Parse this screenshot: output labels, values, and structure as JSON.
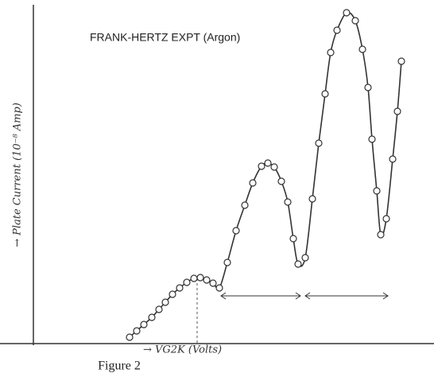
{
  "chart_data": {
    "type": "line",
    "title": "FRANK-HERTZ EXPT (Argon)",
    "xlabel": "→ VG2K (Volts)",
    "ylabel": "→ Plate Current (10⁻⁸ Amp)",
    "caption": "Figure 2",
    "xlim": [
      0,
      252
    ],
    "ylim": [
      0,
      211
    ],
    "color": "#333333",
    "x": [
      60.5,
      65,
      69.5,
      74.5,
      79,
      83,
      87.5,
      92,
      96.5,
      101,
      105,
      109,
      113,
      117,
      122,
      127.5,
      133,
      138,
      143.5,
      147.5,
      151.5,
      156,
      160,
      163.5,
      166.5,
      171,
      175.5,
      179.5,
      183.5,
      187,
      191,
      197,
      202.5,
      207,
      210.5,
      213,
      216,
      218.5,
      222,
      226,
      229,
      231.5
    ],
    "values": [
      4,
      8,
      12,
      16.5,
      21.5,
      26,
      31,
      35,
      38.5,
      41,
      41.5,
      40,
      38,
      35,
      51,
      71,
      87,
      101,
      111.5,
      113.5,
      111,
      102,
      89,
      66,
      50,
      54,
      91,
      126,
      157,
      183,
      197,
      208,
      203,
      185,
      161,
      128.5,
      96,
      68.5,
      78.5,
      116,
      146,
      177.5
    ]
  }
}
